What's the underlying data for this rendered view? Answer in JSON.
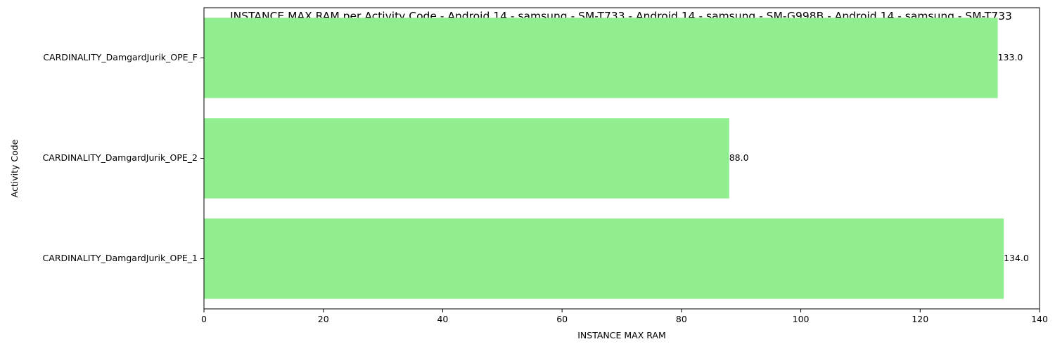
{
  "chart_data": {
    "type": "bar",
    "orientation": "horizontal",
    "title": "INSTANCE MAX RAM per Activity Code - Android 14 - samsung - SM-T733 - Android 14 - samsung - SM-G998B - Android 14 - samsung - SM-T733",
    "xlabel": "INSTANCE MAX RAM",
    "ylabel": "Activity Code",
    "categories": [
      "CARDINALITY_DamgardJurik_OPE_F",
      "CARDINALITY_DamgardJurik_OPE_2",
      "CARDINALITY_DamgardJurik_OPE_1"
    ],
    "values": [
      133.0,
      88.0,
      134.0
    ],
    "value_labels": [
      "133.0",
      "88.0",
      "134.0"
    ],
    "xlim": [
      0,
      140
    ],
    "xticks": [
      0,
      20,
      40,
      60,
      80,
      100,
      120,
      140
    ],
    "xtick_labels": [
      "0",
      "20",
      "40",
      "60",
      "80",
      "100",
      "120",
      "140"
    ],
    "grid": false,
    "legend": "none",
    "bar_color": "#90ee90"
  }
}
